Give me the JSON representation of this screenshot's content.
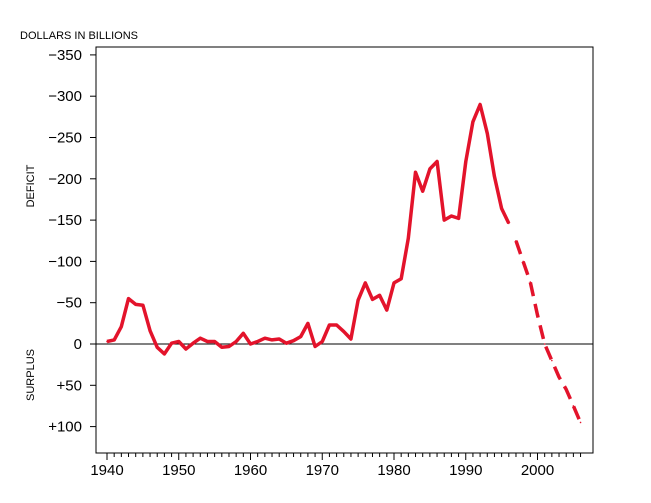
{
  "chart_data": {
    "type": "line",
    "unit_label": "DOLLARS IN BILLIONS",
    "ylabel_upper": "DEFICIT",
    "ylabel_lower": "SURPLUS",
    "xlim": [
      1937,
      2008
    ],
    "ylim": [
      -115,
      350
    ],
    "x_ticks": [
      1940,
      1950,
      1960,
      1970,
      1980,
      1990,
      2000
    ],
    "y_ticks": [
      {
        "value": 350,
        "label": "−350"
      },
      {
        "value": 300,
        "label": "−300"
      },
      {
        "value": 250,
        "label": "−250"
      },
      {
        "value": 200,
        "label": "−200"
      },
      {
        "value": 150,
        "label": "−150"
      },
      {
        "value": 100,
        "label": "−100"
      },
      {
        "value": 50,
        "label": "−50"
      },
      {
        "value": 0,
        "label": "0"
      },
      {
        "value": -50,
        "label": "+50"
      },
      {
        "value": -100,
        "label": "+100"
      }
    ],
    "line_color": "#e3132b",
    "series": [
      {
        "style": "solid",
        "x": [
          1940,
          1941,
          1942,
          1943,
          1944,
          1945,
          1946,
          1947,
          1948,
          1949,
          1950,
          1951,
          1952,
          1953,
          1954,
          1955,
          1956,
          1957,
          1958,
          1959,
          1960,
          1961,
          1962,
          1963,
          1964,
          1965,
          1966,
          1967,
          1968,
          1969,
          1970,
          1971,
          1972,
          1973,
          1974,
          1975,
          1976,
          1977,
          1978,
          1979,
          1980,
          1981,
          1982,
          1983,
          1984,
          1985,
          1986,
          1987,
          1988,
          1989,
          1990,
          1991,
          1992,
          1993,
          1994,
          1995,
          1996
        ],
        "y": [
          3,
          5,
          21,
          55,
          48,
          47,
          16,
          -4,
          -12,
          1,
          3,
          -6,
          1,
          7,
          3,
          3,
          -4,
          -3,
          3,
          13,
          0,
          3,
          7,
          5,
          6,
          1,
          4,
          9,
          25,
          -3,
          3,
          23,
          23,
          15,
          6,
          53,
          74,
          54,
          59,
          41,
          74,
          79,
          128,
          208,
          185,
          212,
          221,
          150,
          155,
          152,
          221,
          269,
          290,
          255,
          203,
          164,
          146
        ]
      },
      {
        "style": "dashed",
        "x": [
          1997,
          1998,
          1999,
          2000,
          2001,
          2002,
          2003,
          2004,
          2005,
          2006
        ],
        "y": [
          125,
          100,
          75,
          35,
          0,
          -20,
          -40,
          -55,
          -75,
          -95
        ]
      }
    ],
    "zero_line": true,
    "grid": false,
    "legend": "none"
  }
}
